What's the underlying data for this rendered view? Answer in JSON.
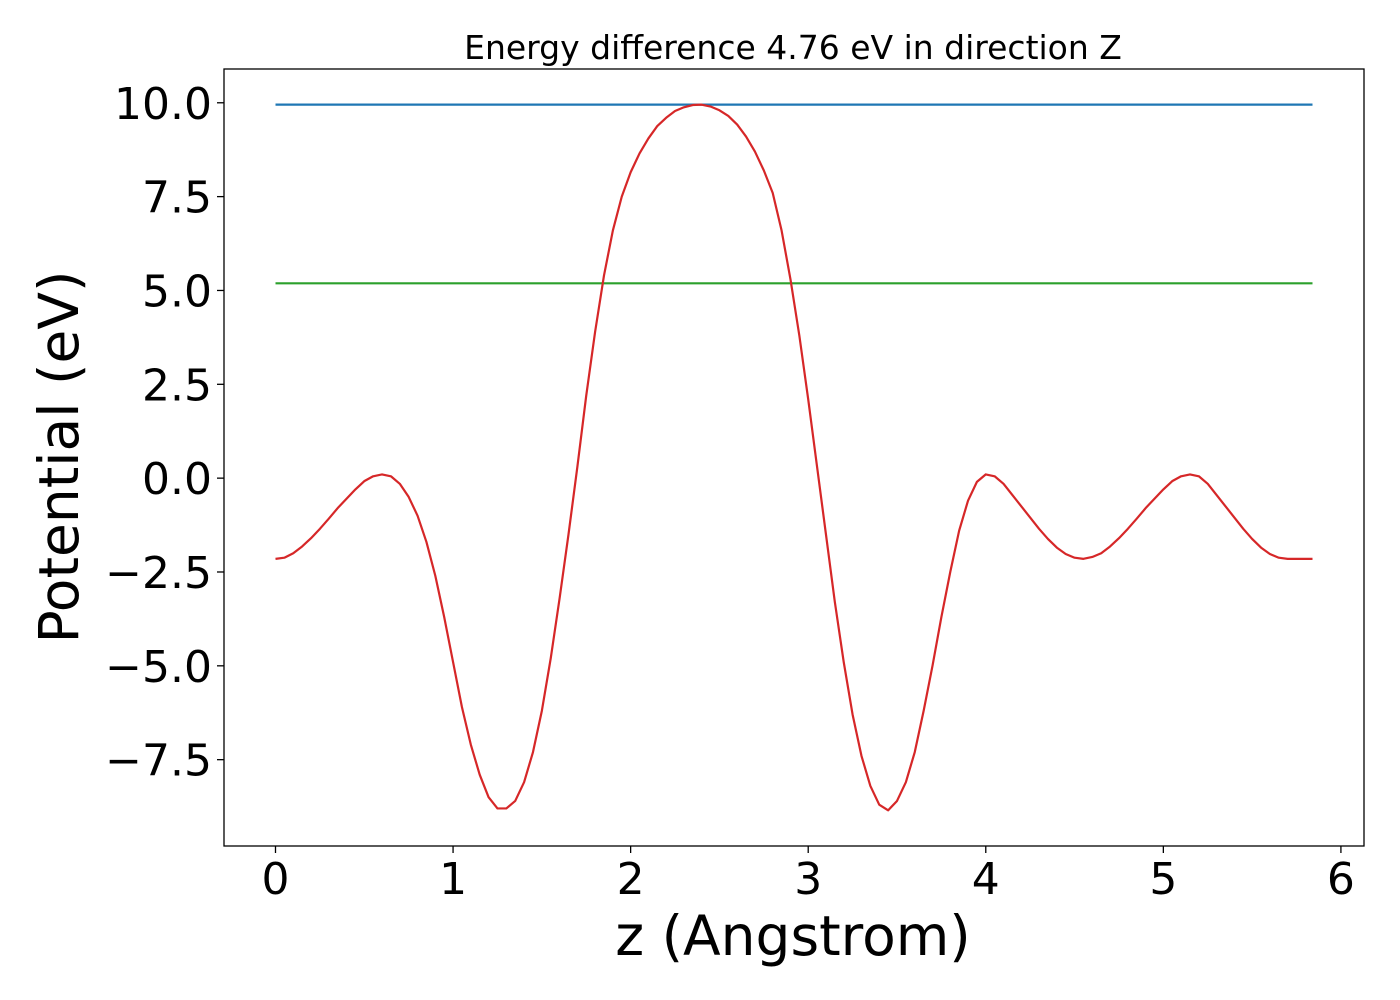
{
  "chart_data": {
    "type": "line",
    "title": "Energy difference 4.76 eV in direction Z",
    "xlabel": "z (Angstrom)",
    "ylabel": "Potential (eV)",
    "xlim": [
      -0.29,
      6.13
    ],
    "ylim": [
      -9.8,
      10.9
    ],
    "xticks": [
      0,
      1,
      2,
      3,
      4,
      5,
      6
    ],
    "xtick_labels": [
      "0",
      "1",
      "2",
      "3",
      "4",
      "5",
      "6"
    ],
    "yticks": [
      10.0,
      7.5,
      5.0,
      2.5,
      0.0,
      -2.5,
      -5.0,
      -7.5
    ],
    "ytick_labels": [
      "10.0",
      "7.5",
      "5.0",
      "2.5",
      "0.0",
      "−2.5",
      "−5.0",
      "−7.5"
    ],
    "grid": false,
    "series": [
      {
        "color": "#1f77b4",
        "x": [
          0,
          5.84
        ],
        "y": [
          9.95,
          9.95
        ]
      },
      {
        "color": "#2ca02c",
        "x": [
          0,
          5.84
        ],
        "y": [
          5.19,
          5.19
        ]
      },
      {
        "color": "#d62728",
        "x": [
          0,
          0.05,
          0.1,
          0.15,
          0.2,
          0.25,
          0.3,
          0.35,
          0.4,
          0.45,
          0.5,
          0.55,
          0.6,
          0.65,
          0.7,
          0.75,
          0.8,
          0.85,
          0.9,
          0.95,
          1.0,
          1.05,
          1.1,
          1.15,
          1.2,
          1.25,
          1.3,
          1.35,
          1.4,
          1.45,
          1.5,
          1.55,
          1.6,
          1.65,
          1.7,
          1.75,
          1.8,
          1.85,
          1.9,
          1.95,
          2.0,
          2.05,
          2.1,
          2.15,
          2.2,
          2.25,
          2.3,
          2.35,
          2.4,
          2.45,
          2.5,
          2.55,
          2.6,
          2.65,
          2.7,
          2.75,
          2.8,
          2.85,
          2.9,
          2.95,
          3.0,
          3.05,
          3.1,
          3.15,
          3.2,
          3.25,
          3.3,
          3.35,
          3.4,
          3.45,
          3.5,
          3.55,
          3.6,
          3.65,
          3.7,
          3.75,
          3.8,
          3.85,
          3.9,
          3.95,
          4.0,
          4.05,
          4.1,
          4.15,
          4.2,
          4.25,
          4.3,
          4.35,
          4.4,
          4.45,
          4.5,
          4.55,
          4.6,
          4.65,
          4.7,
          4.75,
          4.8,
          4.85,
          4.9,
          4.95,
          5.0,
          5.05,
          5.1,
          5.15,
          5.2,
          5.25,
          5.3,
          5.35,
          5.4,
          5.45,
          5.5,
          5.55,
          5.6,
          5.65,
          5.7,
          5.75,
          5.8,
          5.84
        ],
        "y": [
          -2.15,
          -2.12,
          -2.0,
          -1.82,
          -1.6,
          -1.35,
          -1.08,
          -0.8,
          -0.55,
          -0.3,
          -0.08,
          0.05,
          0.1,
          0.05,
          -0.15,
          -0.5,
          -1.0,
          -1.7,
          -2.6,
          -3.7,
          -4.9,
          -6.1,
          -7.1,
          -7.9,
          -8.5,
          -8.8,
          -8.8,
          -8.6,
          -8.1,
          -7.3,
          -6.2,
          -4.8,
          -3.2,
          -1.5,
          0.3,
          2.2,
          3.9,
          5.4,
          6.6,
          7.5,
          8.15,
          8.65,
          9.05,
          9.38,
          9.6,
          9.78,
          9.88,
          9.94,
          9.95,
          9.9,
          9.8,
          9.65,
          9.42,
          9.1,
          8.7,
          8.2,
          7.6,
          6.6,
          5.3,
          3.8,
          2.1,
          0.3,
          -1.5,
          -3.3,
          -4.9,
          -6.3,
          -7.4,
          -8.2,
          -8.7,
          -8.85,
          -8.6,
          -8.1,
          -7.3,
          -6.2,
          -5.0,
          -3.7,
          -2.5,
          -1.4,
          -0.6,
          -0.1,
          0.1,
          0.05,
          -0.15,
          -0.45,
          -0.75,
          -1.05,
          -1.35,
          -1.62,
          -1.85,
          -2.02,
          -2.12,
          -2.15,
          -2.1,
          -2.0,
          -1.82,
          -1.6,
          -1.35,
          -1.08,
          -0.8,
          -0.55,
          -0.3,
          -0.08,
          0.05,
          0.1,
          0.05,
          -0.15,
          -0.45,
          -0.75,
          -1.05,
          -1.35,
          -1.62,
          -1.85,
          -2.02,
          -2.12,
          -2.15,
          -2.15,
          -2.15,
          -2.15
        ]
      }
    ]
  }
}
